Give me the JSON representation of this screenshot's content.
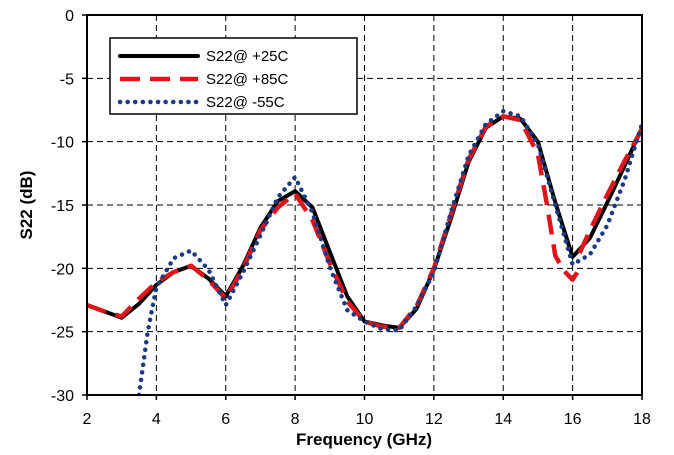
{
  "chart_data": {
    "type": "line",
    "title": "",
    "xlabel": "Frequency (GHz)",
    "ylabel": "S22 (dB)",
    "xlim": [
      2,
      18
    ],
    "ylim": [
      -30,
      0
    ],
    "xticks": [
      2,
      4,
      6,
      8,
      10,
      12,
      14,
      16,
      18
    ],
    "yticks": [
      0,
      -5,
      -10,
      -15,
      -20,
      -25,
      -30
    ],
    "grid": true,
    "legend_position": "top-left",
    "series": [
      {
        "name": "S22@ +25C",
        "color": "#000000",
        "style": "solid",
        "x": [
          2,
          2.5,
          3,
          3.5,
          4,
          4.5,
          5,
          5.5,
          6,
          6.5,
          7,
          7.5,
          8,
          8.5,
          9,
          9.5,
          10,
          10.5,
          11,
          11.5,
          12,
          12.5,
          13,
          13.5,
          14,
          14.5,
          15,
          15.5,
          16,
          16.5,
          17,
          17.5,
          18
        ],
        "y": [
          -22.9,
          -23.4,
          -23.9,
          -22.8,
          -21.3,
          -20.3,
          -19.8,
          -20.8,
          -22.2,
          -19.8,
          -16.8,
          -14.7,
          -13.9,
          -15.2,
          -18.7,
          -22.2,
          -24.2,
          -24.5,
          -24.7,
          -23.2,
          -20.1,
          -16.0,
          -11.6,
          -8.9,
          -8.0,
          -8.2,
          -10.0,
          -14.8,
          -19.1,
          -17.6,
          -14.8,
          -11.9,
          -8.9
        ]
      },
      {
        "name": "S22@ +85C",
        "color": "#e0141b",
        "style": "dashed",
        "x": [
          2,
          2.5,
          3,
          3.5,
          4,
          4.5,
          5,
          5.5,
          6,
          6.5,
          7,
          7.5,
          8,
          8.5,
          9,
          9.5,
          10,
          10.5,
          11,
          11.5,
          12,
          12.5,
          13,
          13.5,
          14,
          14.5,
          15,
          15.25,
          15.5,
          15.75,
          16,
          16.25
        ],
        "y": [
          -22.9,
          -23.4,
          -23.8,
          -22.4,
          -21.1,
          -20.3,
          -19.8,
          -20.9,
          -22.4,
          -20.0,
          -17.0,
          -15.2,
          -14.1,
          -16.2,
          -19.6,
          -22.6,
          -24.2,
          -24.6,
          -24.7,
          -23.0,
          -20.0,
          -15.7,
          -11.4,
          -8.8,
          -8.0,
          -8.3,
          -11.0,
          -14.8,
          -19.0,
          -20.2,
          -20.9,
          -19.8
        ]
      },
      {
        "name": "S22@ +85C",
        "color": "#e0141b",
        "style": "dashed",
        "x": [
          16.2,
          16.5,
          17,
          17.5,
          18
        ],
        "y": [
          -18.8,
          -17.0,
          -14.2,
          -11.5,
          -9.0
        ]
      },
      {
        "name": "S22@ -55C",
        "color": "#1a3a82",
        "style": "dotted",
        "x": [
          3.5,
          3.75,
          4,
          4.5,
          5,
          5.5,
          6,
          6.5,
          7,
          7.5,
          8,
          8.5,
          9,
          9.5,
          10,
          10.5,
          11,
          11.5,
          12,
          12.5,
          13,
          13.5,
          14,
          14.5,
          15,
          15.5,
          16,
          16.5,
          17,
          17.5,
          18
        ],
        "y": [
          -30.0,
          -25.0,
          -21.5,
          -19.2,
          -18.6,
          -20.1,
          -22.9,
          -20.3,
          -17.4,
          -14.4,
          -12.8,
          -15.6,
          -19.9,
          -23.3,
          -24.2,
          -24.8,
          -24.9,
          -23.0,
          -20.3,
          -15.5,
          -11.1,
          -8.6,
          -7.6,
          -8.0,
          -10.2,
          -15.0,
          -19.7,
          -18.9,
          -16.6,
          -13.0,
          -8.6
        ]
      }
    ]
  }
}
